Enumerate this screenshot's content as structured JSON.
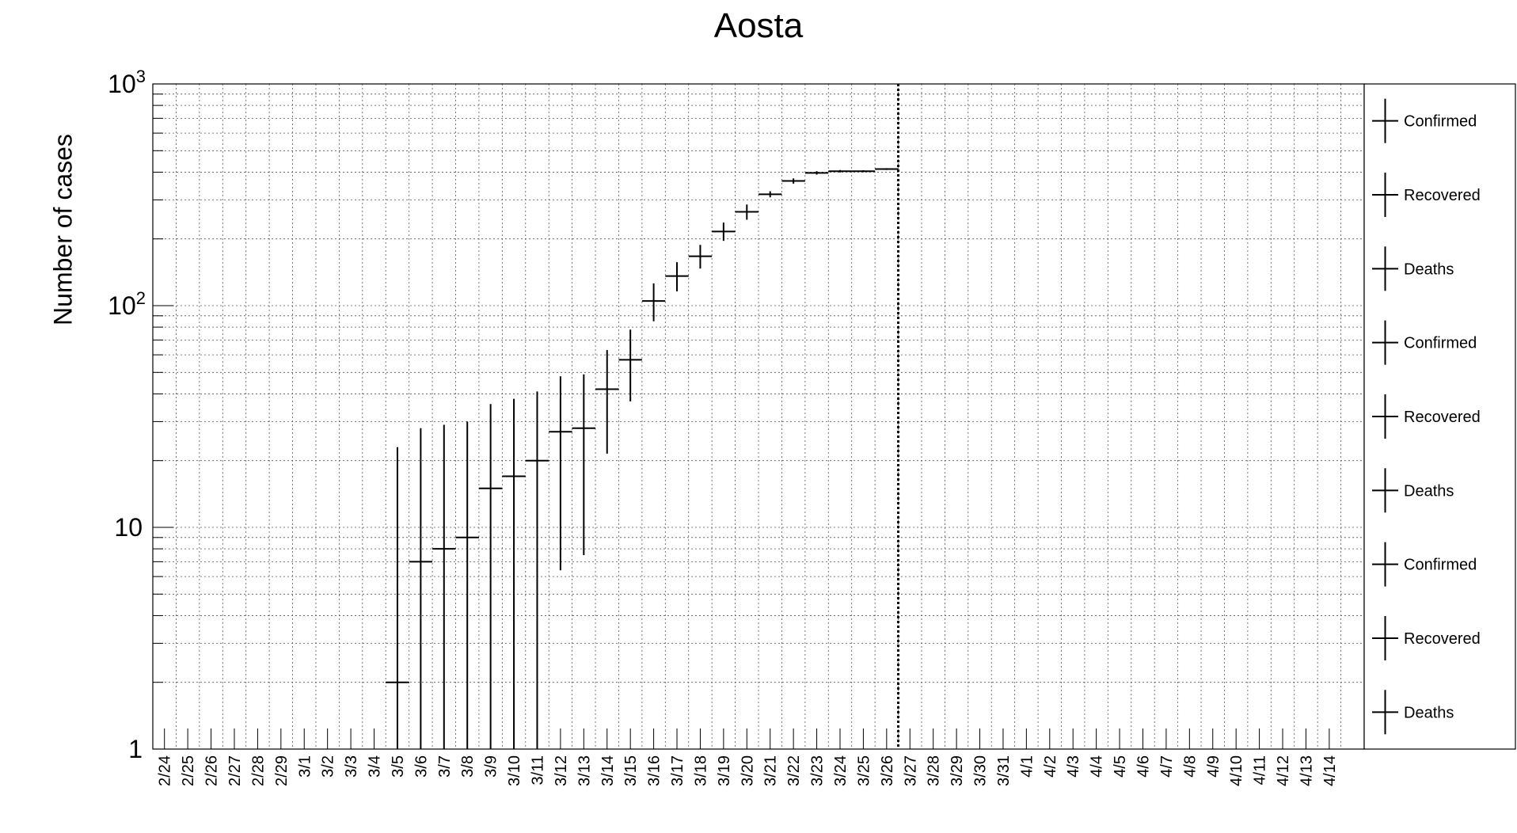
{
  "chart_data": {
    "type": "scatter",
    "title": "Aosta",
    "xlabel": "",
    "ylabel": "Number of cases",
    "y_scale": "log",
    "ylim": [
      1,
      1000
    ],
    "y_tick_labels": [
      {
        "value": 1,
        "base": "1",
        "exp": ""
      },
      {
        "value": 10,
        "base": "10",
        "exp": ""
      },
      {
        "value": 100,
        "base": "10",
        "exp": "2"
      },
      {
        "value": 1000,
        "base": "10",
        "exp": "3"
      }
    ],
    "categories": [
      "2/24",
      "2/25",
      "2/26",
      "2/27",
      "2/28",
      "2/29",
      "3/1",
      "3/2",
      "3/3",
      "3/4",
      "3/5",
      "3/6",
      "3/7",
      "3/8",
      "3/9",
      "3/10",
      "3/11",
      "3/12",
      "3/13",
      "3/14",
      "3/15",
      "3/16",
      "3/17",
      "3/18",
      "3/19",
      "3/20",
      "3/21",
      "3/22",
      "3/23",
      "3/24",
      "3/25",
      "3/26",
      "3/27",
      "3/28",
      "3/29",
      "3/30",
      "3/31",
      "4/1",
      "4/2",
      "4/3",
      "4/4",
      "4/5",
      "4/6",
      "4/7",
      "4/8",
      "4/9",
      "4/10",
      "4/11",
      "4/12",
      "4/13",
      "4/14"
    ],
    "grid": true,
    "marker_line_after": "3/26",
    "series": [
      {
        "name": "Confirmed",
        "points": [
          {
            "x": "3/5",
            "y": 2,
            "ylow": 1,
            "yhigh": 23
          },
          {
            "x": "3/6",
            "y": 7,
            "ylow": 1,
            "yhigh": 28
          },
          {
            "x": "3/7",
            "y": 8,
            "ylow": 1,
            "yhigh": 29
          },
          {
            "x": "3/8",
            "y": 9,
            "ylow": 1,
            "yhigh": 30
          },
          {
            "x": "3/9",
            "y": 15,
            "ylow": 1,
            "yhigh": 36
          },
          {
            "x": "3/10",
            "y": 17,
            "ylow": 1,
            "yhigh": 38
          },
          {
            "x": "3/11",
            "y": 20,
            "ylow": 1,
            "yhigh": 41
          },
          {
            "x": "3/12",
            "y": 27,
            "ylow": 6.4,
            "yhigh": 48
          },
          {
            "x": "3/13",
            "y": 28,
            "ylow": 7.5,
            "yhigh": 49
          },
          {
            "x": "3/14",
            "y": 42,
            "ylow": 21.5,
            "yhigh": 63
          },
          {
            "x": "3/15",
            "y": 57,
            "ylow": 37,
            "yhigh": 78
          },
          {
            "x": "3/16",
            "y": 105,
            "ylow": 85,
            "yhigh": 126
          },
          {
            "x": "3/17",
            "y": 136,
            "ylow": 116,
            "yhigh": 157
          },
          {
            "x": "3/18",
            "y": 167,
            "ylow": 147,
            "yhigh": 188
          },
          {
            "x": "3/19",
            "y": 216,
            "ylow": 196,
            "yhigh": 237
          },
          {
            "x": "3/20",
            "y": 265,
            "ylow": 244,
            "yhigh": 286
          },
          {
            "x": "3/21",
            "y": 318,
            "ylow": 308,
            "yhigh": 328
          },
          {
            "x": "3/22",
            "y": 365,
            "ylow": 355,
            "yhigh": 375
          },
          {
            "x": "3/23",
            "y": 397,
            "ylow": 390,
            "yhigh": 404
          },
          {
            "x": "3/24",
            "y": 404,
            "ylow": 399,
            "yhigh": 409
          },
          {
            "x": "3/25",
            "y": 404,
            "ylow": 400,
            "yhigh": 408
          },
          {
            "x": "3/26",
            "y": 413,
            "ylow": 409,
            "yhigh": 417
          }
        ]
      },
      {
        "name": "Recovered",
        "points": []
      },
      {
        "name": "Deaths",
        "points": []
      }
    ],
    "legend": {
      "position": "right",
      "entries": [
        "Confirmed",
        "Recovered",
        "Deaths",
        "Confirmed",
        "Recovered",
        "Deaths",
        "Confirmed",
        "Recovered",
        "Deaths"
      ]
    }
  }
}
